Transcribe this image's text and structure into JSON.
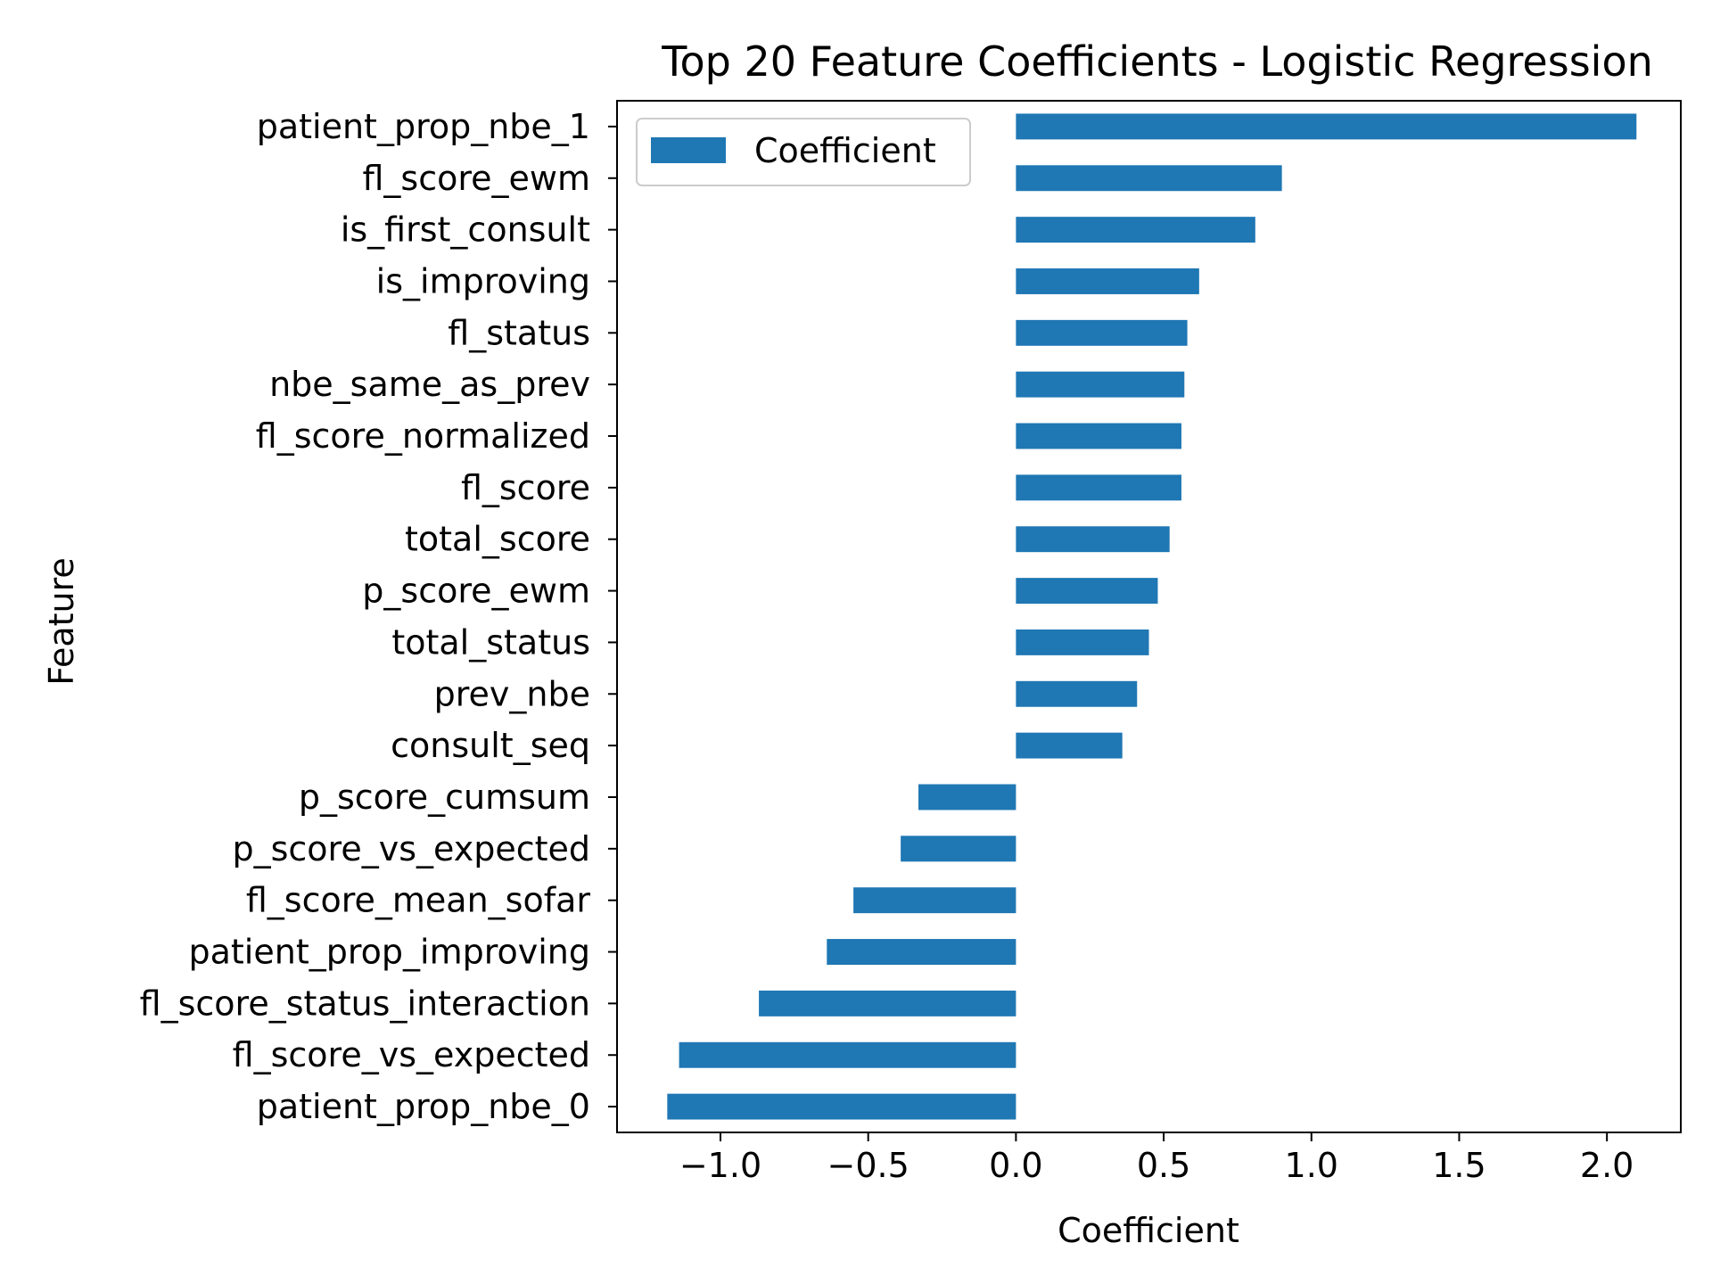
{
  "chart_data": {
    "type": "bar",
    "orientation": "horizontal",
    "title": "Top 20 Feature Coefficients - Logistic Regression",
    "xlabel": "Coefficient",
    "ylabel": "Feature",
    "xlim": [
      -1.35,
      2.25
    ],
    "xticks": [
      -1.0,
      -0.5,
      0.0,
      0.5,
      1.0,
      1.5,
      2.0
    ],
    "xtick_labels": [
      "−1.0",
      "−0.5",
      "0.0",
      "0.5",
      "1.0",
      "1.5",
      "2.0"
    ],
    "grid": false,
    "legend": {
      "placement": "upper-left",
      "entries": [
        "Coefficient"
      ]
    },
    "bar_color": "#1f77b4",
    "categories": [
      "patient_prop_nbe_1",
      "fl_score_ewm",
      "is_first_consult",
      "is_improving",
      "fl_status",
      "nbe_same_as_prev",
      "fl_score_normalized",
      "fl_score",
      "total_score",
      "p_score_ewm",
      "total_status",
      "prev_nbe",
      "consult_seq",
      "p_score_cumsum",
      "p_score_vs_expected",
      "fl_score_mean_sofar",
      "patient_prop_improving",
      "fl_score_status_interaction",
      "fl_score_vs_expected",
      "patient_prop_nbe_0"
    ],
    "series": [
      {
        "name": "Coefficient",
        "values": [
          2.1,
          0.9,
          0.81,
          0.62,
          0.58,
          0.57,
          0.56,
          0.56,
          0.52,
          0.48,
          0.45,
          0.41,
          0.36,
          -0.33,
          -0.39,
          -0.55,
          -0.64,
          -0.87,
          -1.14,
          -1.18
        ]
      }
    ]
  }
}
